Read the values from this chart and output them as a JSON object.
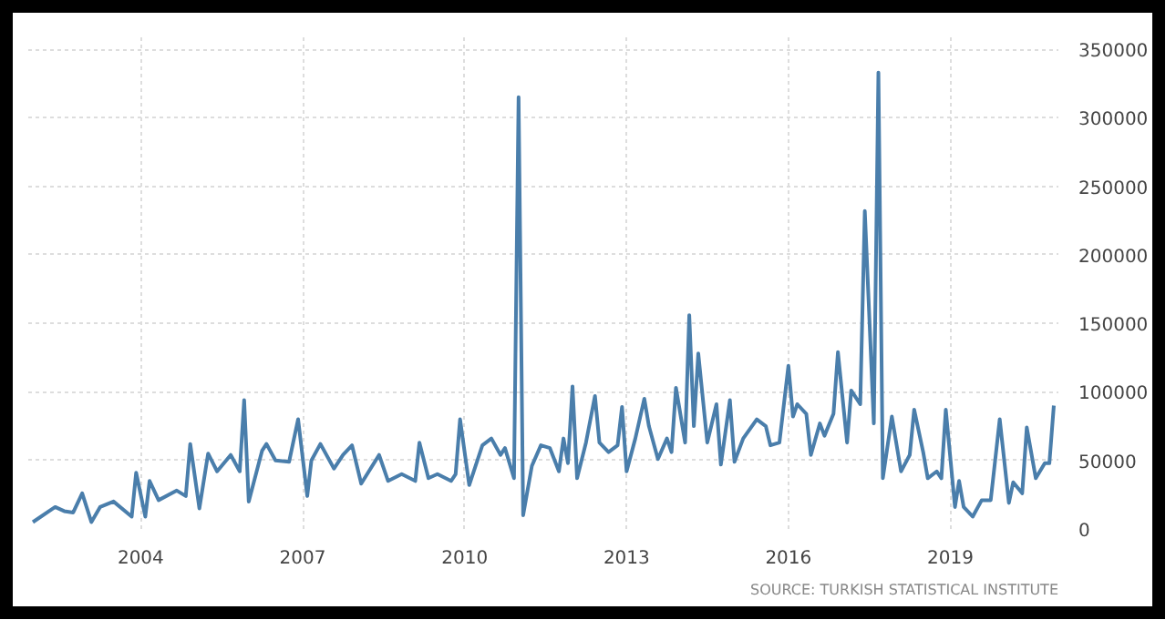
{
  "chart_data": {
    "type": "line",
    "x": [
      "2002-01",
      "2002-06",
      "2002-08",
      "2002-10",
      "2002-12",
      "2003-02",
      "2003-04",
      "2003-07",
      "2003-11",
      "2003-12",
      "2004-02",
      "2004-03",
      "2004-05",
      "2004-09",
      "2004-11",
      "2004-12",
      "2005-02",
      "2005-04",
      "2005-06",
      "2005-09",
      "2005-11",
      "2005-12",
      "2006-01",
      "2006-04",
      "2006-05",
      "2006-07",
      "2006-10",
      "2006-12",
      "2007-02",
      "2007-03",
      "2007-05",
      "2007-08",
      "2007-10",
      "2007-12",
      "2008-02",
      "2008-06",
      "2008-08",
      "2008-11",
      "2009-02",
      "2009-03",
      "2009-05",
      "2009-07",
      "2009-10",
      "2009-11",
      "2009-12",
      "2010-02",
      "2010-05",
      "2010-07",
      "2010-09",
      "2010-10",
      "2010-12",
      "2011-01",
      "2011-02",
      "2011-04",
      "2011-06",
      "2011-08",
      "2011-10",
      "2011-11",
      "2011-12",
      "2012-01",
      "2012-02",
      "2012-04",
      "2012-06",
      "2012-07",
      "2012-09",
      "2012-11",
      "2012-12",
      "2013-01",
      "2013-03",
      "2013-05",
      "2013-06",
      "2013-08",
      "2013-10",
      "2013-11",
      "2013-12",
      "2014-02",
      "2014-03",
      "2014-04",
      "2014-05",
      "2014-07",
      "2014-09",
      "2014-10",
      "2014-12",
      "2015-01",
      "2015-03",
      "2015-06",
      "2015-08",
      "2015-09",
      "2015-11",
      "2016-01",
      "2016-02",
      "2016-03",
      "2016-05",
      "2016-06",
      "2016-08",
      "2016-09",
      "2016-11",
      "2016-12",
      "2017-02",
      "2017-03",
      "2017-05",
      "2017-06",
      "2017-08",
      "2017-09",
      "2017-10",
      "2017-12",
      "2018-02",
      "2018-04",
      "2018-05",
      "2018-07",
      "2018-08",
      "2018-10",
      "2018-11",
      "2018-12",
      "2019-02",
      "2019-03",
      "2019-04",
      "2019-06",
      "2019-08",
      "2019-10",
      "2019-12",
      "2020-02",
      "2020-03",
      "2020-05",
      "2020-06",
      "2020-08",
      "2020-10",
      "2020-11",
      "2020-12"
    ],
    "series": [
      {
        "color": "#4a7eab",
        "values": [
          5000,
          16000,
          13000,
          12000,
          26000,
          5000,
          16000,
          20000,
          9000,
          41000,
          9000,
          35000,
          21000,
          28000,
          24000,
          62000,
          15000,
          55000,
          42000,
          54000,
          42000,
          94000,
          20000,
          57000,
          62000,
          50000,
          49000,
          80000,
          24000,
          50000,
          62000,
          44000,
          54000,
          61000,
          33000,
          54000,
          35000,
          40000,
          35000,
          63000,
          37000,
          40000,
          35000,
          40000,
          80000,
          32000,
          61000,
          66000,
          54000,
          59000,
          37000,
          315000,
          10000,
          46000,
          61000,
          59000,
          42000,
          66000,
          48000,
          104000,
          37000,
          63000,
          97000,
          63000,
          56000,
          61000,
          89000,
          42000,
          66000,
          95000,
          75000,
          51000,
          66000,
          56000,
          103000,
          63000,
          156000,
          75000,
          128000,
          63000,
          91000,
          47000,
          94000,
          49000,
          66000,
          80000,
          75000,
          61000,
          63000,
          119000,
          82000,
          91000,
          84000,
          54000,
          77000,
          68000,
          84000,
          129000,
          63000,
          101000,
          91000,
          232000,
          77000,
          333000,
          37000,
          82000,
          42000,
          54000,
          87000,
          56000,
          37000,
          42000,
          37000,
          87000,
          16000,
          35000,
          16000,
          9000,
          21000,
          21000,
          80000,
          19000,
          34000,
          26000,
          74000,
          37000,
          48000,
          48000,
          90000
        ]
      }
    ],
    "xlim": [
      "2001-12",
      "2021-01"
    ],
    "xticks": [
      {
        "value": "2004",
        "label": "2004"
      },
      {
        "value": "2007",
        "label": "2007"
      },
      {
        "value": "2010",
        "label": "2010"
      },
      {
        "value": "2013",
        "label": "2013"
      },
      {
        "value": "2016",
        "label": "2016"
      },
      {
        "value": "2019",
        "label": "2019"
      }
    ],
    "ylim": [
      0,
      360000
    ],
    "yticks": [
      0,
      50000,
      100000,
      150000,
      200000,
      250000,
      300000,
      350000
    ],
    "grid": true,
    "marker": "none",
    "line_style": "solid",
    "annotations": [
      "SOURCE: TURKISH STATISTICAL INSTITUTE"
    ]
  }
}
